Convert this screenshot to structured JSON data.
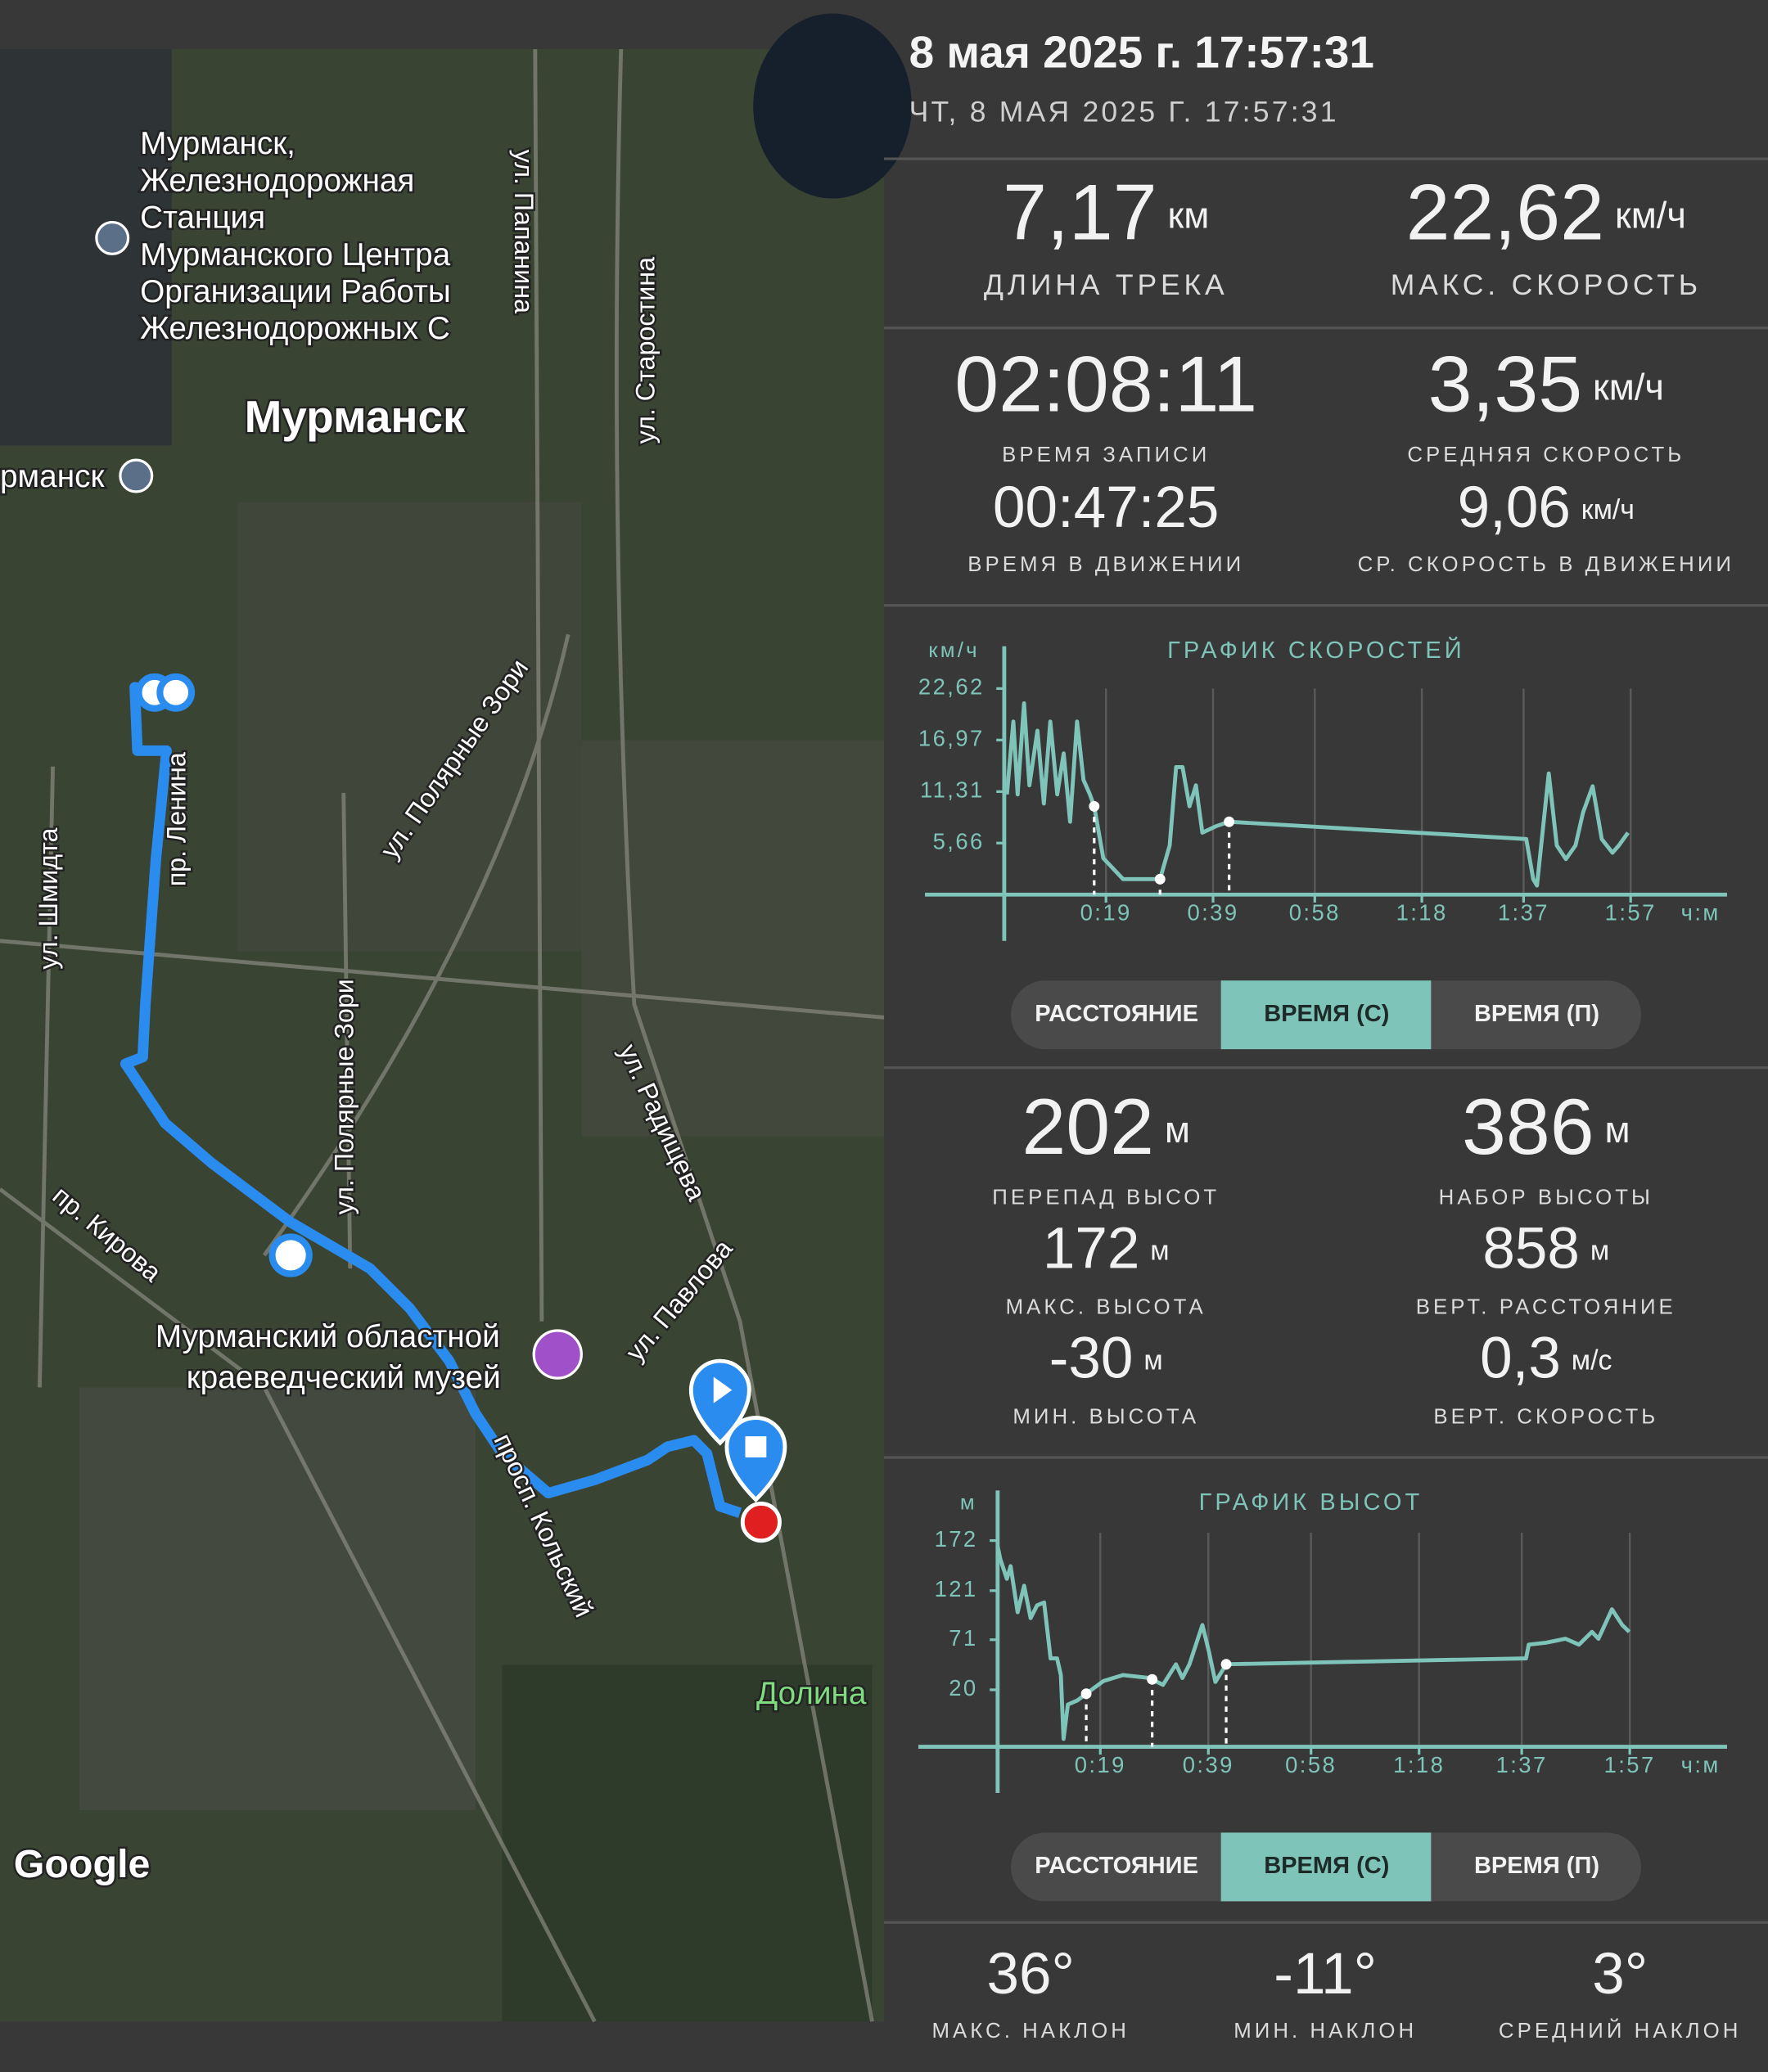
{
  "header": {
    "title": "8 мая 2025 г. 17:57:31",
    "subtitle": "ЧТ, 8 МАЯ 2025 Г. 17:57:31"
  },
  "stats": [
    {
      "value": "7,17",
      "unit": "км",
      "label": "ДЛИНА ТРЕКА"
    },
    {
      "value": "22,62",
      "unit": "км/ч",
      "label": "МАКС. СКОРОСТЬ"
    },
    {
      "value": "02:08:11",
      "label": "ВРЕМЯ ЗАПИСИ"
    },
    {
      "value": "3,35",
      "unit": "км/ч",
      "label": "СРЕДНЯЯ СКОРОСТЬ"
    },
    {
      "value": "00:47:25",
      "label": "ВРЕМЯ В ДВИЖЕНИИ"
    },
    {
      "value": "9,06",
      "unit": "км/ч",
      "label": "СР. СКОРОСТЬ В ДВИЖЕНИИ"
    },
    {
      "value": "202",
      "unit": "м",
      "label": "ПЕРЕПАД ВЫСОТ"
    },
    {
      "value": "386",
      "unit": "м",
      "label": "НАБОР ВЫСОТЫ"
    },
    {
      "value": "172",
      "unit": "м",
      "label": "МАКС. ВЫСОТА"
    },
    {
      "value": "858",
      "unit": "м",
      "label": "ВЕРТ. РАССТОЯНИЕ"
    },
    {
      "value": "-30",
      "unit": "м",
      "label": "МИН. ВЫСОТА"
    },
    {
      "value": "0,3",
      "unit": "м/с",
      "label": "ВЕРТ. СКОРОСТЬ"
    },
    {
      "value": "36°",
      "label": "МАКС. НАКЛОН"
    },
    {
      "value": "-11°",
      "label": "МИН. НАКЛОН"
    },
    {
      "value": "3°",
      "label": "СРЕДНИЙ НАКЛОН"
    }
  ],
  "chart_data": [
    {
      "type": "line",
      "title": "ГРАФИК СКОРОСТЕЙ",
      "y_label": "км/ч",
      "x_label": "ч:м",
      "color": "#7fc4b8",
      "x": [
        0.5,
        1.7,
        2.5,
        3.7,
        4.7,
        6.2,
        7.4,
        8.6,
        9.9,
        11.1,
        12.3,
        13.6,
        14.8,
        16,
        16.8,
        18.5,
        22.2,
        29.1,
        30.9,
        32.1,
        33.3,
        34.6,
        35.8,
        37,
        39.5,
        42,
        97.5,
        98.8,
        99.5,
        101.7,
        103.2,
        104.9,
        106.7,
        108.1,
        109.9,
        111.6,
        113.6,
        114.8,
        116.5
      ],
      "values": [
        11,
        19,
        11,
        21,
        12,
        18,
        10,
        19,
        11,
        15.5,
        8,
        19,
        12.6,
        11,
        9.7,
        4,
        1.7,
        1.7,
        5.4,
        14,
        14,
        9.7,
        12,
        6.8,
        7.5,
        8,
        6.1,
        1.7,
        1,
        13.3,
        5.4,
        3.9,
        5.4,
        9,
        11.9,
        6.1,
        4.6,
        5.4,
        6.8
      ],
      "markers": [
        16.8,
        29.1,
        42
      ],
      "xlim": [
        0,
        135
      ],
      "ylim": [
        0,
        22.62
      ],
      "yticks": [
        {
          "value": 22.62,
          "label": "22,62"
        },
        {
          "value": 16.97,
          "label": "16,97"
        },
        {
          "value": 11.31,
          "label": "11,31"
        },
        {
          "value": 5.66,
          "label": "5,66"
        }
      ],
      "xticks": [
        {
          "value": 19,
          "label": "0:19"
        },
        {
          "value": 39,
          "label": "0:39"
        },
        {
          "value": 58,
          "label": "0:58"
        },
        {
          "value": 78,
          "label": "1:18"
        },
        {
          "value": 97,
          "label": "1:37"
        },
        {
          "value": 117,
          "label": "1:57"
        }
      ],
      "grid": true
    },
    {
      "type": "line",
      "title": "ГРАФИК ВЫСОТ",
      "y_label": "м",
      "x_label": "ч:м",
      "color": "#7fc4b8",
      "x": [
        0,
        0.5,
        1.7,
        2.4,
        3.7,
        4.9,
        6.1,
        7.3,
        8.6,
        9.8,
        11,
        11.7,
        12.2,
        13,
        14.7,
        16.4,
        19.6,
        23.2,
        28.1,
        30.6,
        33,
        34.2,
        35.5,
        36.7,
        37.9,
        39.1,
        40.3,
        42.3,
        97.8,
        98.3,
        101.5,
        105.1,
        107.6,
        110,
        111.2,
        113.7,
        115.6,
        116.9
      ],
      "values": [
        166,
        153,
        133,
        146,
        99,
        126,
        93,
        106,
        109,
        52,
        52,
        35,
        -30,
        5,
        9,
        16,
        29,
        35,
        32,
        25,
        46,
        32,
        46,
        66,
        86,
        59,
        28,
        46,
        52,
        66,
        68,
        72,
        66,
        79,
        72,
        102,
        86,
        79
      ],
      "markers": [
        16.4,
        28.6,
        42.3
      ],
      "xlim": [
        0,
        135
      ],
      "ylim": [
        -38,
        180
      ],
      "yticks": [
        172,
        121,
        71,
        20
      ],
      "xticks": [
        {
          "value": 19,
          "label": "0:19"
        },
        {
          "value": 39,
          "label": "0:39"
        },
        {
          "value": 58,
          "label": "0:58"
        },
        {
          "value": 78,
          "label": "1:18"
        },
        {
          "value": 97,
          "label": "1:37"
        },
        {
          "value": 117,
          "label": "1:57"
        }
      ],
      "grid": true
    }
  ],
  "toggles": [
    {
      "options": [
        "РАССТОЯНИЕ",
        "ВРЕМЯ (С)",
        "ВРЕМЯ (П)"
      ],
      "selected": 1
    },
    {
      "options": [
        "РАССТОЯНИЕ",
        "ВРЕМЯ (С)",
        "ВРЕМЯ (П)"
      ],
      "selected": 1
    }
  ],
  "map": {
    "labels": [
      "Мурманск,",
      "Железнодорожная",
      "Станция",
      "Мурманского Центра",
      "Организации Работы",
      "Железнодорожных С",
      "Мурманск",
      "рманск",
      "ул. Папанина",
      "ул. Старостина",
      "ул. Полярные Зори",
      "пр. Ленина",
      "ул. Шмидта",
      "ул. Полярные Зори",
      "ул. Радищева",
      "пр. Кирова",
      "ул. Павлова",
      "Мурманский областной",
      "краеведческий музей",
      "просп. Кольский",
      "Долина",
      "Google"
    ]
  }
}
